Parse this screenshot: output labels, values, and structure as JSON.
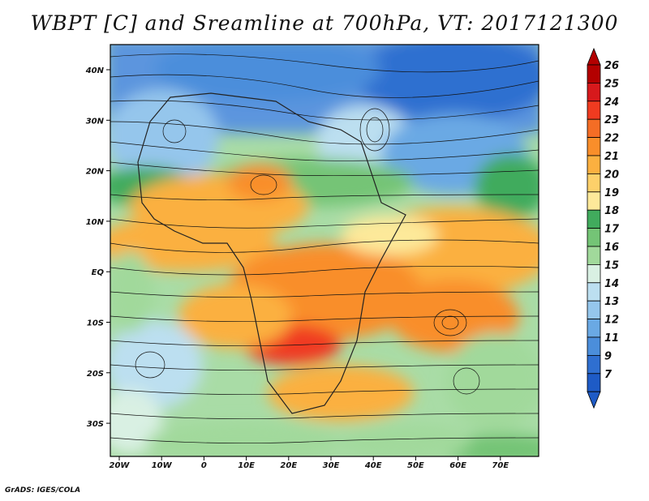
{
  "title": "WBPT [C] and Sreamline at 700hPa, VT: 2017121300",
  "footer": "GrADS: IGES/COLA",
  "lon_labels": [
    "20W",
    "10W",
    "0",
    "10E",
    "20E",
    "30E",
    "40E",
    "50E",
    "60E",
    "70E"
  ],
  "lat_labels": [
    "40N",
    "30N",
    "20N",
    "10N",
    "EQ",
    "10S",
    "20S",
    "30S"
  ],
  "colorbar": {
    "levels": [
      "26",
      "25",
      "24",
      "23",
      "22",
      "21",
      "20",
      "19",
      "18",
      "17",
      "16",
      "15",
      "14",
      "13",
      "12",
      "11",
      "9",
      "7"
    ],
    "colors": [
      "#b30000",
      "#d7191c",
      "#f03b20",
      "#f46d25",
      "#f98e2a",
      "#fbb040",
      "#fdd06a",
      "#fde99a",
      "#41ab5d",
      "#74c476",
      "#a1d99b",
      "#d9f0e3",
      "#bcdff0",
      "#95c6ec",
      "#6aa9e4",
      "#4b8edb",
      "#2f6fd0",
      "#1e5bc6"
    ]
  }
}
